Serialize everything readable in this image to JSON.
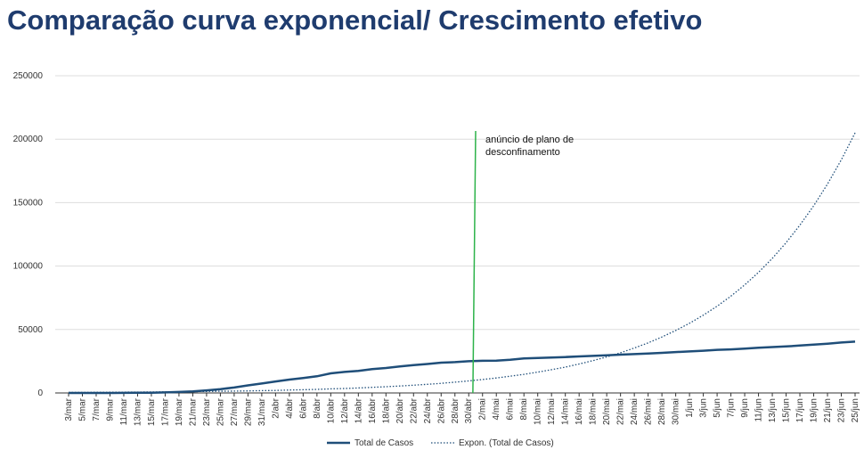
{
  "chart_data": {
    "type": "line",
    "title": "Comparação curva exponencial/ Crescimento efetivo",
    "categories": [
      "3/mar",
      "5/mar",
      "7/mar",
      "9/mar",
      "11/mar",
      "13/mar",
      "15/mar",
      "17/mar",
      "19/mar",
      "21/mar",
      "23/mar",
      "25/mar",
      "27/mar",
      "29/mar",
      "31/mar",
      "2/abr",
      "4/abr",
      "6/abr",
      "8/abr",
      "10/abr",
      "12/abr",
      "14/abr",
      "16/abr",
      "18/abr",
      "20/abr",
      "22/abr",
      "24/abr",
      "26/abr",
      "28/abr",
      "30/abr",
      "2/mai",
      "4/mai",
      "6/mai",
      "8/mai",
      "10/mai",
      "12/mai",
      "14/mai",
      "16/mai",
      "18/mai",
      "20/mai",
      "22/mai",
      "24/mai",
      "26/mai",
      "28/mai",
      "30/mai",
      "1/jun",
      "3/jun",
      "5/jun",
      "7/jun",
      "9/jun",
      "11/jun",
      "13/jun",
      "15/jun",
      "17/jun",
      "19/jun",
      "21/jun",
      "23/jun",
      "25/jun"
    ],
    "series": [
      {
        "name": "Total de Casos",
        "color": "#1f4e79",
        "style": "solid",
        "values": [
          2,
          5,
          13,
          30,
          59,
          112,
          245,
          448,
          785,
          1280,
          2060,
          2995,
          4268,
          5962,
          7443,
          9034,
          10524,
          11730,
          13141,
          15472,
          16585,
          17448,
          18841,
          19685,
          20863,
          21982,
          22797,
          23864,
          24322,
          24987,
          25351,
          25524,
          26182,
          27268,
          27581,
          27913,
          28319,
          28810,
          29209,
          29660,
          30200,
          30623,
          31007,
          31596,
          32203,
          32700,
          33261,
          33969,
          34351,
          34885,
          35600,
          36180,
          36690,
          37336,
          38089,
          38841,
          39737,
          40415
        ]
      },
      {
        "name": "Expon. (Total de Casos)",
        "color": "#1f4e79",
        "style": "dotted",
        "values": [
          390,
          430,
          480,
          540,
          600,
          670,
          750,
          840,
          930,
          1040,
          1160,
          1300,
          1450,
          1600,
          1800,
          2000,
          2300,
          2500,
          2800,
          3200,
          3500,
          3900,
          4400,
          4900,
          5500,
          6100,
          6800,
          7600,
          8500,
          9500,
          10600,
          11800,
          13200,
          14700,
          16400,
          18300,
          20400,
          22800,
          25500,
          28400,
          31700,
          35400,
          39500,
          44100,
          49200,
          54900,
          61300,
          68400,
          76300,
          85200,
          95100,
          106100,
          118400,
          132200,
          147500,
          164600,
          183700,
          205000
        ]
      }
    ],
    "ylim": [
      0,
      250000
    ],
    "yticks": [
      0,
      50000,
      100000,
      150000,
      200000,
      250000
    ],
    "grid": true,
    "annotation": {
      "lines": [
        "anúncio de plano de",
        "desconfinamento"
      ],
      "color": "#2db34a"
    },
    "legend": "bottom"
  }
}
